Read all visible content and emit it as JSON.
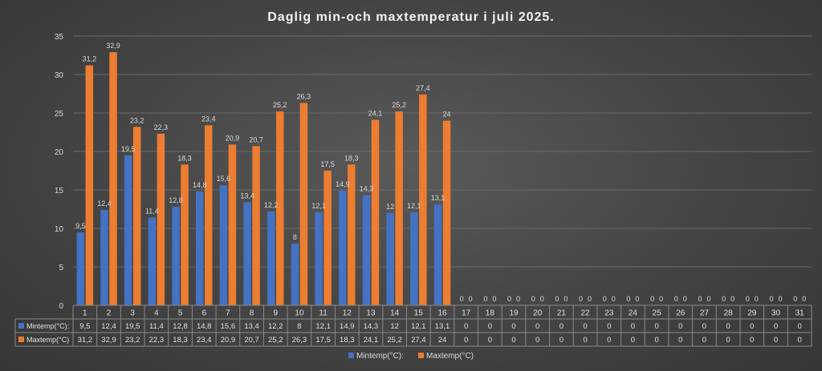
{
  "chart_data": {
    "type": "bar",
    "title": "Daglig min-och maxtemperatur i juli 2025.",
    "categories": [
      "1",
      "2",
      "3",
      "4",
      "5",
      "6",
      "7",
      "8",
      "9",
      "10",
      "11",
      "12",
      "13",
      "14",
      "15",
      "16",
      "17",
      "18",
      "19",
      "20",
      "21",
      "22",
      "23",
      "24",
      "25",
      "26",
      "27",
      "28",
      "29",
      "30",
      "31"
    ],
    "series": [
      {
        "name": "Mintemp(°C):",
        "color": "#4472c4",
        "values": [
          9.5,
          12.4,
          19.5,
          11.4,
          12.8,
          14.8,
          15.6,
          13.4,
          12.2,
          8,
          12.1,
          14.9,
          14.3,
          12,
          12.1,
          13.1,
          0,
          0,
          0,
          0,
          0,
          0,
          0,
          0,
          0,
          0,
          0,
          0,
          0,
          0,
          0
        ],
        "labels": [
          "9,5",
          "12,4",
          "19,5",
          "11,4",
          "12,8",
          "14,8",
          "15,6",
          "13,4",
          "12,2",
          "8",
          "12,1",
          "14,9",
          "14,3",
          "12",
          "12,1",
          "13,1",
          "0",
          "0",
          "0",
          "0",
          "0",
          "0",
          "0",
          "0",
          "0",
          "0",
          "0",
          "0",
          "0",
          "0",
          "0"
        ]
      },
      {
        "name": "Maxtemp(°C)",
        "color": "#ed7d31",
        "values": [
          31.2,
          32.9,
          23.2,
          22.3,
          18.3,
          23.4,
          20.9,
          20.7,
          25.2,
          26.3,
          17.5,
          18.3,
          24.1,
          25.2,
          27.4,
          24,
          0,
          0,
          0,
          0,
          0,
          0,
          0,
          0,
          0,
          0,
          0,
          0,
          0,
          0,
          0
        ],
        "labels": [
          "31,2",
          "32,9",
          "23,2",
          "22,3",
          "18,3",
          "23,4",
          "20,9",
          "20,7",
          "25,2",
          "26,3",
          "17,5",
          "18,3",
          "24,1",
          "25,2",
          "27,4",
          "24",
          "0",
          "0",
          "0",
          "0",
          "0",
          "0",
          "0",
          "0",
          "0",
          "0",
          "0",
          "0",
          "0",
          "0",
          "0"
        ]
      }
    ],
    "ylim": [
      0,
      35
    ],
    "yticks": [
      "0",
      "5",
      "10",
      "15",
      "20",
      "25",
      "30",
      "35"
    ],
    "grid": true,
    "data_table": true,
    "legend_position": "bottom"
  }
}
